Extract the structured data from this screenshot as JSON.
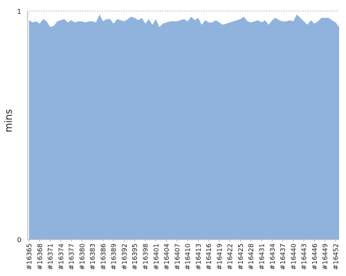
{
  "chart_data": {
    "type": "area",
    "title": "",
    "xlabel": "",
    "ylabel": "mins",
    "ylim": [
      0,
      1
    ],
    "y_ticks": [
      "0",
      "1"
    ],
    "grid": "dotted line at y max",
    "legend": "none",
    "colors": {
      "fill": "#8FB3DC",
      "axis": "#aaaaaa",
      "ref_line": "#999999"
    },
    "tick_labels": [
      "#16365",
      "#16368",
      "#16371",
      "#16374",
      "#16377",
      "#16380",
      "#16383",
      "#16386",
      "#16389",
      "#16392",
      "#16395",
      "#16398",
      "#16401",
      "#16404",
      "#16407",
      "#16410",
      "#16413",
      "#16416",
      "#16419",
      "#16422",
      "#16425",
      "#16428",
      "#16431",
      "#16434",
      "#16437",
      "#16440",
      "#16443",
      "#16446",
      "#16449",
      "#16452"
    ],
    "x": [
      16365,
      16366,
      16367,
      16368,
      16369,
      16370,
      16371,
      16372,
      16373,
      16374,
      16375,
      16376,
      16377,
      16378,
      16379,
      16380,
      16381,
      16382,
      16383,
      16384,
      16385,
      16386,
      16387,
      16388,
      16389,
      16390,
      16391,
      16392,
      16393,
      16394,
      16395,
      16396,
      16397,
      16398,
      16399,
      16400,
      16401,
      16402,
      16403,
      16404,
      16405,
      16406,
      16407,
      16408,
      16409,
      16410,
      16411,
      16412,
      16413,
      16414,
      16415,
      16416,
      16417,
      16418,
      16419,
      16420,
      16421,
      16422,
      16423,
      16424,
      16425,
      16426,
      16427,
      16428,
      16429,
      16430,
      16431,
      16432,
      16433,
      16434,
      16435,
      16436,
      16437,
      16438,
      16439,
      16440,
      16441,
      16442,
      16443,
      16444,
      16445,
      16446,
      16447,
      16448,
      16449,
      16450,
      16451,
      16452,
      16453
    ],
    "values": [
      0.96,
      0.95,
      0.955,
      0.945,
      0.965,
      0.955,
      0.93,
      0.935,
      0.955,
      0.96,
      0.965,
      0.95,
      0.96,
      0.95,
      0.955,
      0.955,
      0.95,
      0.955,
      0.955,
      0.95,
      0.985,
      0.955,
      0.965,
      0.965,
      0.945,
      0.965,
      0.96,
      0.955,
      0.965,
      0.975,
      0.97,
      0.96,
      0.97,
      0.945,
      0.965,
      0.94,
      0.965,
      0.93,
      0.945,
      0.95,
      0.955,
      0.955,
      0.955,
      0.96,
      0.965,
      0.955,
      0.975,
      0.96,
      0.97,
      0.94,
      0.96,
      0.95,
      0.95,
      0.96,
      0.95,
      0.94,
      0.945,
      0.95,
      0.955,
      0.96,
      0.965,
      0.975,
      0.955,
      0.95,
      0.955,
      0.96,
      0.95,
      0.96,
      0.94,
      0.96,
      0.97,
      0.96,
      0.955,
      0.955,
      0.96,
      0.955,
      0.985,
      0.97,
      0.955,
      0.94,
      0.96,
      0.945,
      0.955,
      0.97,
      0.97,
      0.97,
      0.96,
      0.95,
      0.93
    ]
  }
}
